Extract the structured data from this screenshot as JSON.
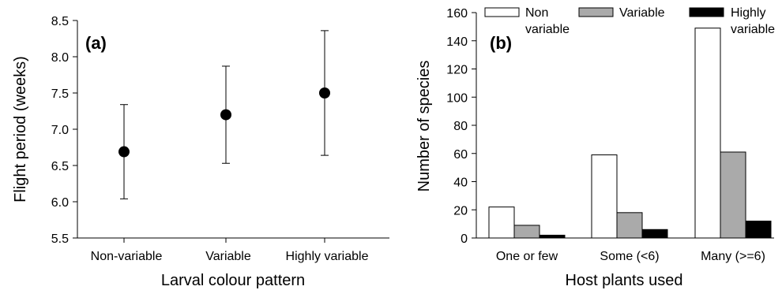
{
  "chart_data": [
    {
      "type": "scatter",
      "panel_label": "(a)",
      "xlabel": "Larval colour pattern",
      "ylabel": "Flight period (weeks)",
      "categories": [
        "Non-variable",
        "Variable",
        "Highly variable"
      ],
      "values": [
        6.69,
        7.2,
        7.5
      ],
      "error_low": [
        6.04,
        6.53,
        6.64
      ],
      "error_high": [
        7.34,
        7.87,
        8.36
      ],
      "ylim": [
        5.5,
        8.5
      ],
      "yticks": [
        "5.5",
        "6.0",
        "6.5",
        "7.0",
        "7.5",
        "8.0",
        "8.5"
      ],
      "grid": false,
      "marker_color": "#000000"
    },
    {
      "type": "bar",
      "panel_label": "(b)",
      "xlabel": "Host plants used",
      "ylabel": "Number of species",
      "categories": [
        "One or few",
        "Some (<6)",
        "Many (>=6)"
      ],
      "series": [
        {
          "name": "Non variable",
          "legend_lines": [
            "Non",
            "variable"
          ],
          "values": [
            22,
            59,
            149
          ],
          "color": "#ffffff"
        },
        {
          "name": "Variable",
          "legend_lines": [
            "Variable"
          ],
          "values": [
            9,
            18,
            61
          ],
          "color": "#aaaaaa"
        },
        {
          "name": "Highly variable",
          "legend_lines": [
            "Highly",
            "variable"
          ],
          "values": [
            2,
            6,
            12
          ],
          "color": "#000000"
        }
      ],
      "ylim": [
        0,
        160
      ],
      "yticks": [
        "0",
        "20",
        "40",
        "60",
        "80",
        "100",
        "120",
        "140",
        "160"
      ],
      "grid": false,
      "legend_position": "top"
    }
  ]
}
